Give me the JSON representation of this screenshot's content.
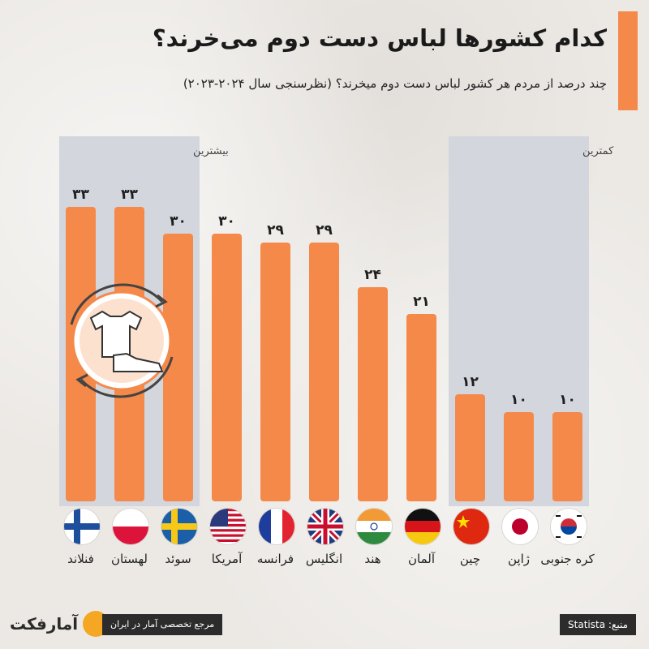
{
  "header": {
    "title": "کدام کشورها لباس دست دوم می‌خرند؟",
    "subtitle": "چند درصد از مردم هر کشور لباس دست دوم میخرند؟ (نظرسنجی سال ۲۰۲۴-۲۰۲۳)"
  },
  "colors": {
    "bar": "#f5894a",
    "highlight_panel": "#d3d6dd",
    "accent": "#f5894a"
  },
  "chart_data": {
    "type": "bar",
    "title": "کدام کشورها لباس دست دوم می‌خرند؟",
    "subtitle": "چند درصد از مردم هر کشور لباس دست دوم میخرند؟ (نظرسنجی سال ۲۰۲۴-۲۰۲۳)",
    "xlabel": "",
    "ylabel": "",
    "ylim": [
      0,
      40
    ],
    "grid": false,
    "categories": [
      "فنلاند",
      "لهستان",
      "سوئد",
      "آمریکا",
      "فرانسه",
      "انگلیس",
      "هند",
      "آلمان",
      "چین",
      "ژاپن",
      "کره جنوبی"
    ],
    "values": [
      33,
      33,
      30,
      30,
      29,
      29,
      24,
      21,
      12,
      10,
      10
    ],
    "value_labels": [
      "۳۳",
      "۳۳",
      "۳۰",
      "۳۰",
      "۲۹",
      "۲۹",
      "۲۴",
      "۲۱",
      "۱۲",
      "۱۰",
      "۱۰"
    ],
    "flags": [
      "finland-flag",
      "poland-flag",
      "sweden-flag",
      "usa-flag",
      "france-flag",
      "uk-flag",
      "india-flag",
      "germany-flag",
      "china-flag",
      "japan-flag",
      "south-korea-flag"
    ],
    "annotations": [
      {
        "text": "بیشترین",
        "group": "highest"
      },
      {
        "text": "کمترین",
        "group": "lowest"
      }
    ]
  },
  "footer": {
    "brand": "آمارفکت",
    "tagline": "مرجع تخصصی آمار در ایران",
    "source": "منبع: Statista"
  }
}
